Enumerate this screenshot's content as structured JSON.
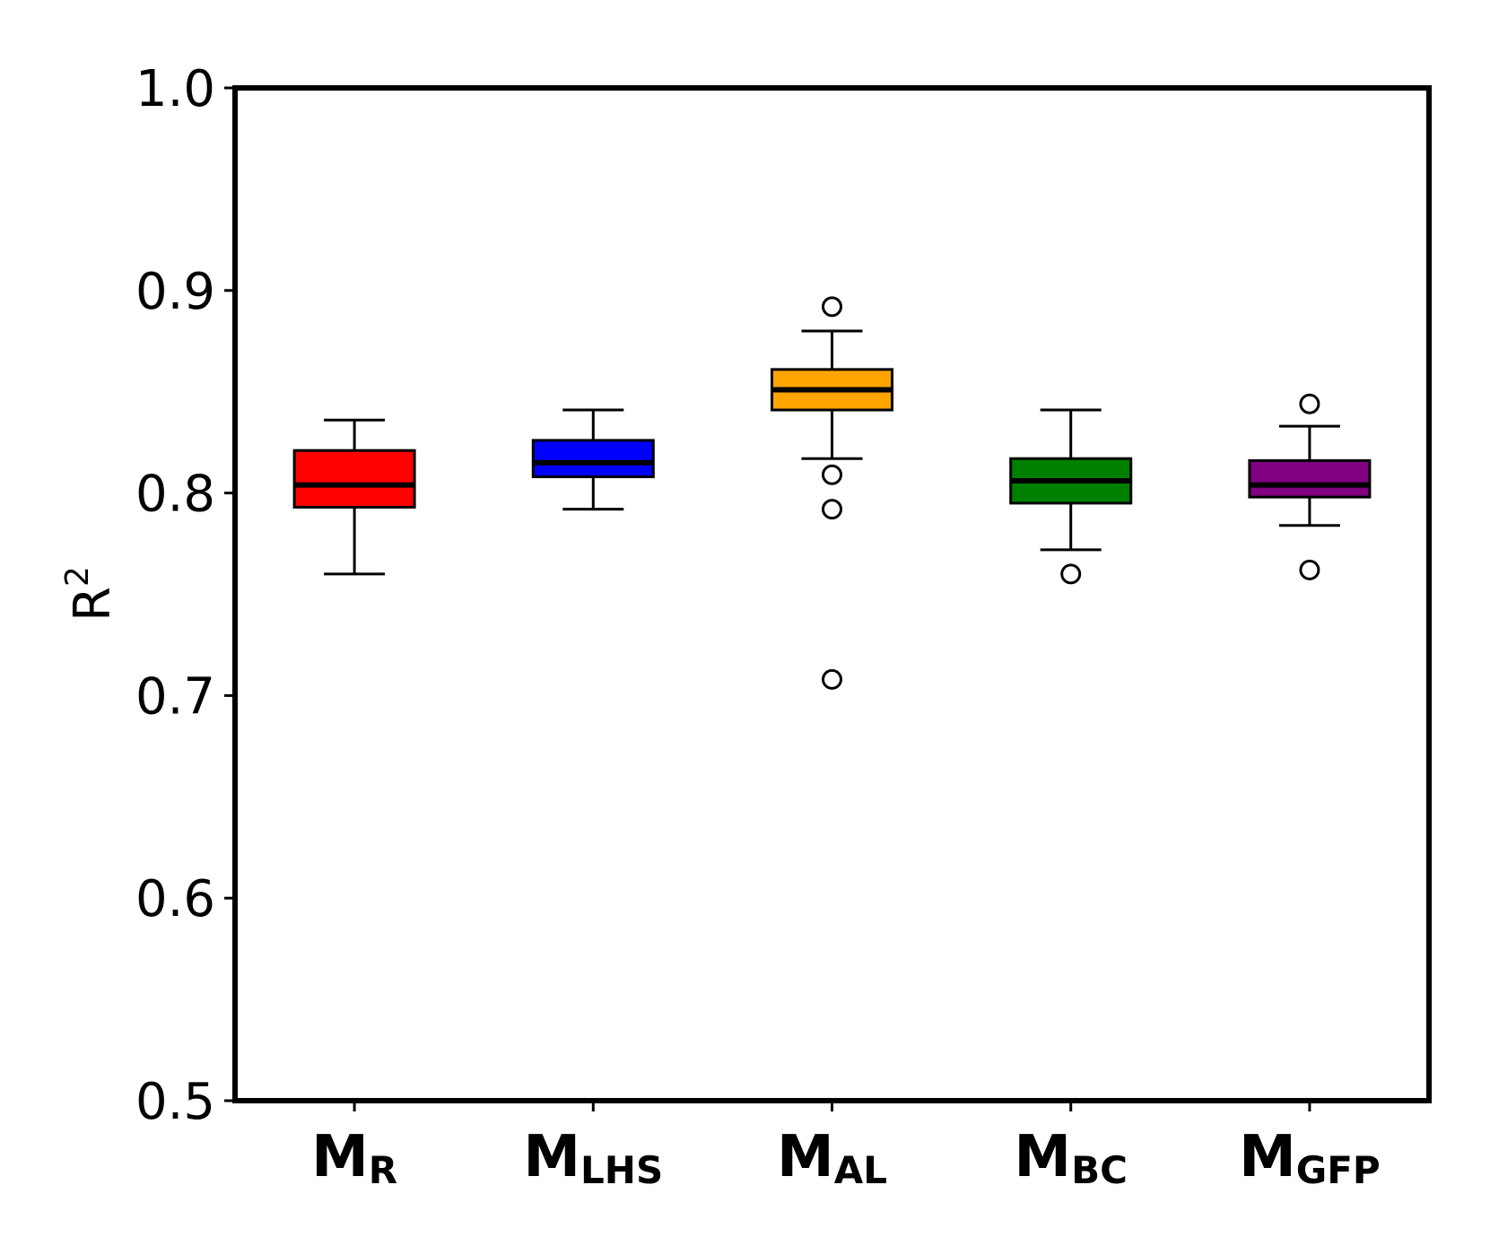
{
  "chart_data": {
    "type": "box",
    "ylabel": {
      "base": "R",
      "sup": "2"
    },
    "ylim": [
      0.5,
      1.0
    ],
    "yticks": [
      "0.5",
      "0.6",
      "0.7",
      "0.8",
      "0.9",
      "1.0"
    ],
    "grid": false,
    "legend": "none",
    "series": [
      {
        "label": {
          "base": "M",
          "sub": "R"
        },
        "color": "#ff0000",
        "whisker_low": 0.76,
        "q1": 0.793,
        "median": 0.804,
        "q3": 0.821,
        "whisker_high": 0.836,
        "outliers": []
      },
      {
        "label": {
          "base": "M",
          "sub": "LHS"
        },
        "color": "#0000ff",
        "whisker_low": 0.792,
        "q1": 0.808,
        "median": 0.815,
        "q3": 0.826,
        "whisker_high": 0.841,
        "outliers": []
      },
      {
        "label": {
          "base": "M",
          "sub": "AL"
        },
        "color": "#ffa500",
        "whisker_low": 0.817,
        "q1": 0.841,
        "median": 0.851,
        "q3": 0.861,
        "whisker_high": 0.88,
        "outliers": [
          0.892,
          0.809,
          0.792,
          0.708
        ]
      },
      {
        "label": {
          "base": "M",
          "sub": "BC"
        },
        "color": "#008000",
        "whisker_low": 0.772,
        "q1": 0.795,
        "median": 0.806,
        "q3": 0.817,
        "whisker_high": 0.841,
        "outliers": [
          0.76
        ]
      },
      {
        "label": {
          "base": "M",
          "sub": "GFP"
        },
        "color": "#800080",
        "whisker_low": 0.784,
        "q1": 0.798,
        "median": 0.804,
        "q3": 0.816,
        "whisker_high": 0.833,
        "outliers": [
          0.844,
          0.762
        ]
      }
    ]
  }
}
